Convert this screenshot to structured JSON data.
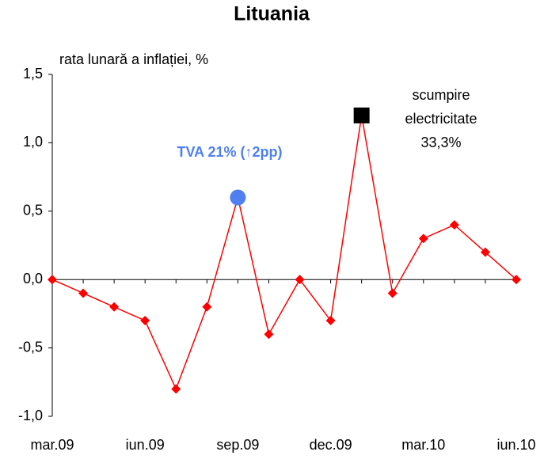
{
  "chart_data": {
    "type": "line",
    "title": "Lituania",
    "y_label": "rata lunară a inflației, %",
    "categories": [
      "mar.09",
      null,
      null,
      "iun.09",
      null,
      null,
      "sep.09",
      null,
      null,
      "dec.09",
      null,
      null,
      "mar.10",
      null,
      null,
      "iun.10"
    ],
    "series": [
      {
        "name": "rata lunară a inflației",
        "color": "#ff0000",
        "values": [
          0,
          -0.1,
          -0.2,
          -0.3,
          -0.8,
          -0.2,
          0.6,
          -0.4,
          0,
          -0.3,
          1.2,
          -0.1,
          0.3,
          0.4,
          0.2,
          0
        ]
      }
    ],
    "highlights": [
      {
        "index": 6,
        "shape": "circle",
        "color": "#4f7ff0"
      },
      {
        "index": 10,
        "shape": "square",
        "color": "#000000"
      }
    ],
    "annotations": [
      {
        "text": "TVA 21% (↑2pp)",
        "color": "#4f7ff0"
      },
      {
        "lines": [
          "scumpire",
          "electricitate",
          "33,3%"
        ],
        "color": "#000000"
      }
    ],
    "ylim": [
      -1.0,
      1.5
    ],
    "yticks": [
      {
        "value": -1.0,
        "label": "-1,0"
      },
      {
        "value": -0.5,
        "label": "-0,5"
      },
      {
        "value": 0,
        "label": "0,0"
      },
      {
        "value": 0.5,
        "label": "0,5"
      },
      {
        "value": 1.0,
        "label": "1,0"
      },
      {
        "value": 1.5,
        "label": "1,5"
      }
    ],
    "grid": false
  }
}
